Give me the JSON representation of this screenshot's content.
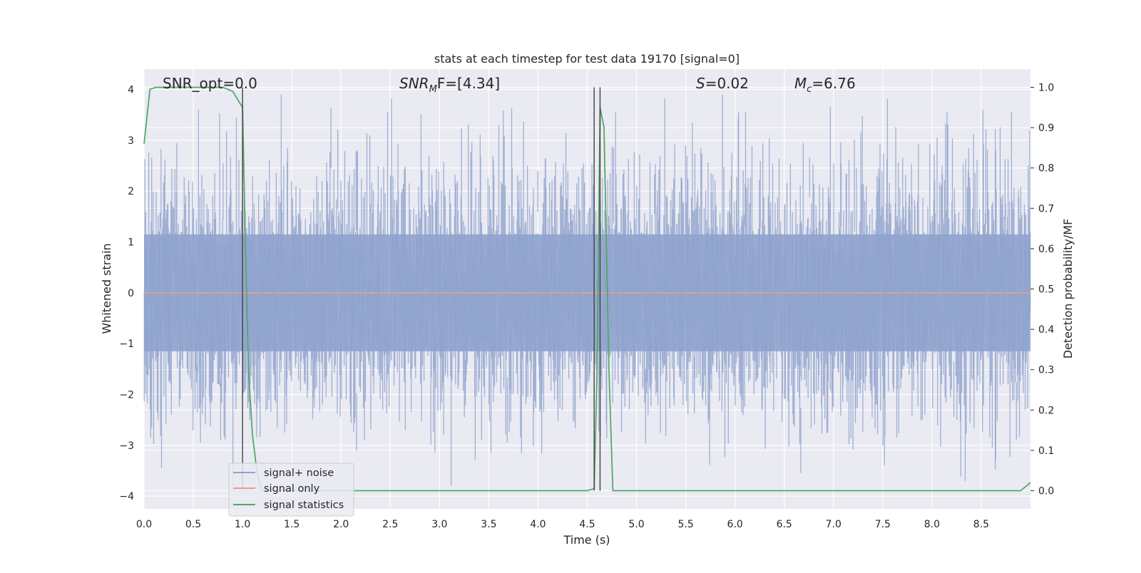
{
  "chart_data": {
    "type": "line",
    "title": "stats at each timestep for test data 19170 [signal=0]",
    "xlabel": "Time (s)",
    "ylabel_left": "Whitened strain",
    "ylabel_right": "Detection probability/MF",
    "xlim": [
      0.0,
      9.0
    ],
    "ylim_left": [
      -4.25,
      4.4
    ],
    "ylim_right": [
      -0.045,
      1.045
    ],
    "x_ticks": [
      "0.0",
      "0.5",
      "1.0",
      "1.5",
      "2.0",
      "2.5",
      "3.0",
      "3.5",
      "4.0",
      "4.5",
      "5.0",
      "5.5",
      "6.0",
      "6.5",
      "7.0",
      "7.5",
      "8.0",
      "8.5"
    ],
    "y_ticks_left": [
      "4",
      "3",
      "2",
      "1",
      "0",
      "−1",
      "−2",
      "−3",
      "−4"
    ],
    "y_ticks_right": [
      "1.0",
      "0.9",
      "0.8",
      "0.7",
      "0.6",
      "0.5",
      "0.4",
      "0.3",
      "0.2",
      "0.1",
      "0.0"
    ],
    "grid": true,
    "legend_position": "lower-left",
    "annotations": {
      "snr_opt": "SNR_opt=0.0",
      "snr_mf_base": "SNR",
      "snr_mf_sub": "M",
      "snr_mf_rest": "F=[4.34]",
      "s_var": "S",
      "s_rest": "=0.02",
      "mc_base": "M",
      "mc_sub": "c",
      "mc_rest": "=6.76"
    },
    "markers_x": [
      1.0,
      4.57,
      4.63
    ],
    "series": [
      {
        "name": "signal+ noise",
        "color": "#8fa3cd",
        "kind": "noise",
        "y_axis": "left",
        "amplitude_range": [
          -3.8,
          3.9
        ]
      },
      {
        "name": "signal only",
        "color": "#e8a08a",
        "y_axis": "left",
        "x": [
          0.0,
          9.0
        ],
        "y": [
          0.0,
          0.0
        ]
      },
      {
        "name": "signal statistics",
        "color": "#55a868",
        "y_axis": "right",
        "x": [
          0.0,
          0.06,
          0.12,
          0.25,
          0.5,
          0.8,
          0.9,
          0.95,
          1.0,
          1.03,
          1.06,
          1.1,
          1.15,
          1.2,
          1.5,
          2.0,
          3.0,
          4.0,
          4.5,
          4.57,
          4.6,
          4.63,
          4.67,
          4.72,
          4.76,
          5.0,
          6.0,
          7.0,
          8.0,
          8.9,
          9.0
        ],
        "y": [
          0.86,
          0.995,
          1.0,
          1.0,
          1.0,
          1.0,
          0.99,
          0.97,
          0.95,
          0.6,
          0.3,
          0.14,
          0.04,
          0.0,
          0.0,
          0.0,
          0.0,
          0.0,
          0.0,
          0.005,
          0.3,
          0.95,
          0.9,
          0.3,
          0.0,
          0.0,
          0.0,
          0.0,
          0.0,
          0.0,
          0.02
        ]
      }
    ]
  }
}
